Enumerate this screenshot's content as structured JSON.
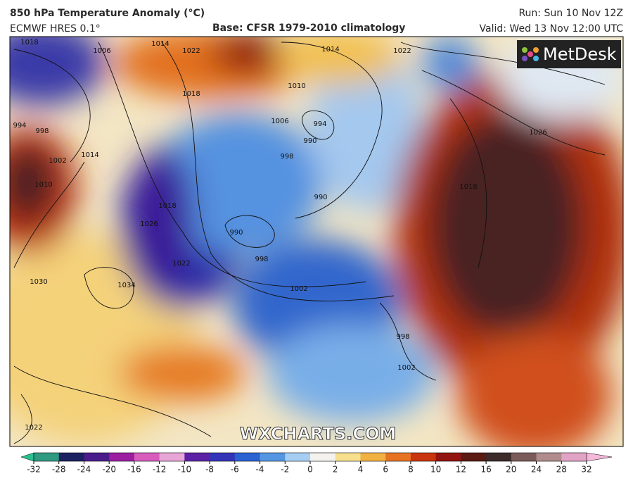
{
  "header": {
    "title": "850 hPa Temperature Anomaly (°C)",
    "model": "ECMWF HRES 0.1°",
    "base": "Base: CFSR 1979-2010 climatology",
    "run": "Run: Sun 10 Nov 12Z",
    "valid": "Valid: Wed 13 Nov 12:00 UTC"
  },
  "map": {
    "logo": "MetDesk",
    "watermark": "WXCHARTS.COM",
    "isobar_labels": [
      1018,
      1006,
      1014,
      1022,
      1018,
      1014,
      1022,
      1010,
      1006,
      994,
      990,
      998,
      990,
      990,
      998,
      1002,
      1014,
      1002,
      1010,
      994,
      998,
      1018,
      1026,
      1022,
      1030,
      1034,
      1018,
      1026,
      998,
      1002,
      1022
    ]
  },
  "colorbar": {
    "ticks": [
      -32,
      -28,
      -24,
      -20,
      -16,
      -12,
      -10,
      -8,
      -6,
      -4,
      -2,
      0,
      2,
      4,
      6,
      8,
      10,
      12,
      16,
      20,
      24,
      28,
      32
    ],
    "colors": [
      "#2e9a80",
      "#1c2160",
      "#4a1c8c",
      "#9c1fa0",
      "#d85cbc",
      "#e7a6d6",
      "#5b22a6",
      "#3434b8",
      "#2a62d2",
      "#5596e2",
      "#a6cdf2",
      "#f4f2ee",
      "#f6e08e",
      "#f1b143",
      "#e77322",
      "#c9350f",
      "#921410",
      "#5a1b14",
      "#3b2b2b",
      "#7b5a5a",
      "#b08c8c",
      "#e2a4c4"
    ],
    "low_color": "#27c08f",
    "high_color": "#f4b8d8"
  }
}
